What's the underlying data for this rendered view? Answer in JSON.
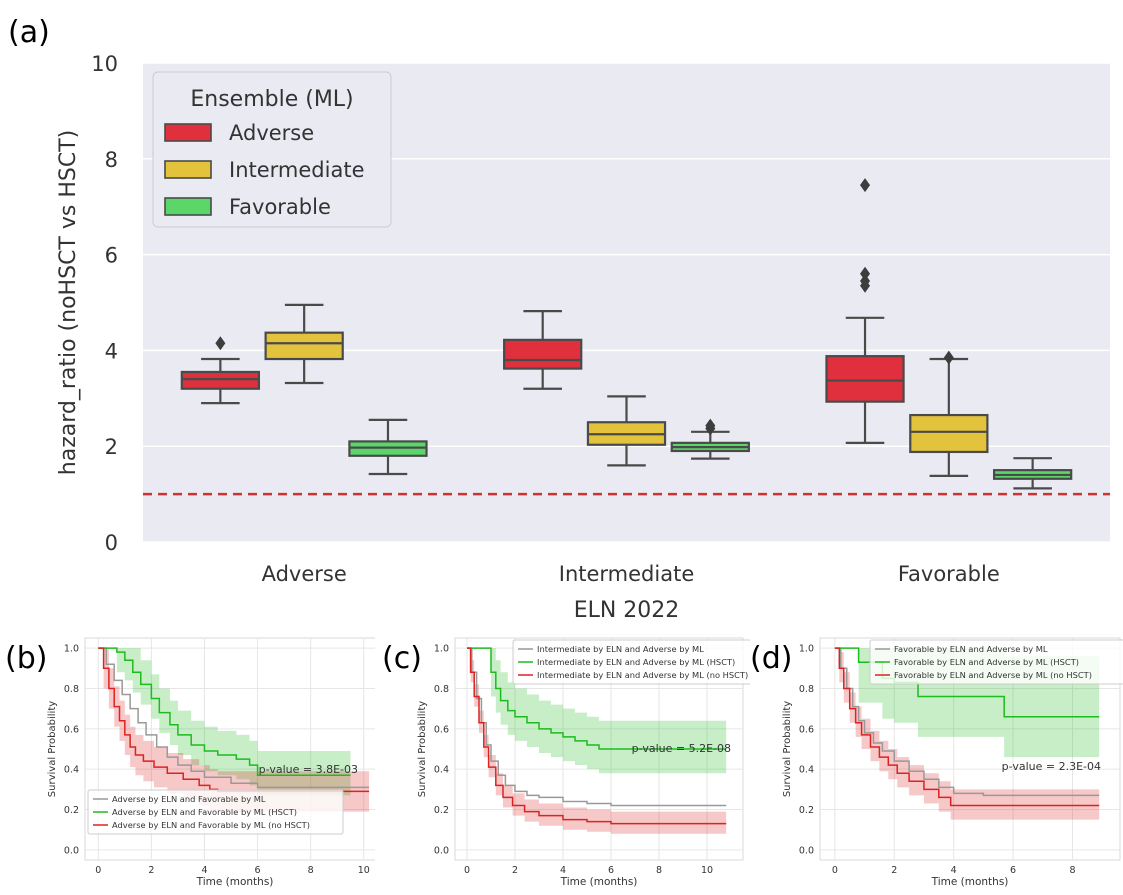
{
  "panel_labels": [
    "(a)",
    "(b)",
    "(c)",
    "(d)"
  ],
  "chart_data": [
    {
      "type": "box",
      "panel": "(a)",
      "xlabel": "ELN 2022",
      "ylabel": "hazard_ratio (noHSCT vs HSCT)",
      "ylim": [
        0,
        10
      ],
      "yticks": [
        "0",
        "2",
        "4",
        "6",
        "8",
        "10"
      ],
      "categories": [
        "Adverse",
        "Intermediate",
        "Favorable"
      ],
      "reference_line": {
        "y": 1,
        "style": "dashed",
        "color": "#cc3333"
      },
      "grid": true,
      "legend": {
        "title": "Ensemble (ML)",
        "placement": "top-left"
      },
      "series": [
        {
          "name": "Adverse",
          "color": "#e0303e",
          "boxes": [
            {
              "whislo": 2.9,
              "q1": 3.2,
              "med": 3.4,
              "q3": 3.55,
              "whishi": 3.82,
              "fliers": [
                4.15
              ]
            },
            {
              "whislo": 3.2,
              "q1": 3.62,
              "med": 3.8,
              "q3": 4.22,
              "whishi": 4.82,
              "fliers": []
            },
            {
              "whislo": 2.07,
              "q1": 2.93,
              "med": 3.37,
              "q3": 3.88,
              "whishi": 4.68,
              "fliers": [
                5.35,
                5.45,
                5.6,
                7.45
              ]
            }
          ]
        },
        {
          "name": "Intermediate",
          "color": "#e3c23c",
          "boxes": [
            {
              "whislo": 3.32,
              "q1": 3.82,
              "med": 4.15,
              "q3": 4.37,
              "whishi": 4.95,
              "fliers": []
            },
            {
              "whislo": 1.6,
              "q1": 2.03,
              "med": 2.25,
              "q3": 2.5,
              "whishi": 3.04,
              "fliers": []
            },
            {
              "whislo": 1.38,
              "q1": 1.88,
              "med": 2.3,
              "q3": 2.65,
              "whishi": 3.82,
              "fliers": [
                3.85
              ]
            }
          ]
        },
        {
          "name": "Favorable",
          "color": "#5ad768",
          "boxes": [
            {
              "whislo": 1.42,
              "q1": 1.8,
              "med": 1.97,
              "q3": 2.1,
              "whishi": 2.55,
              "fliers": []
            },
            {
              "whislo": 1.74,
              "q1": 1.9,
              "med": 1.98,
              "q3": 2.07,
              "whishi": 2.3,
              "fliers": [
                2.37,
                2.43
              ]
            },
            {
              "whislo": 1.12,
              "q1": 1.32,
              "med": 1.4,
              "q3": 1.5,
              "whishi": 1.75,
              "fliers": []
            }
          ]
        }
      ]
    },
    {
      "type": "line",
      "panel": "(b)",
      "xlabel": "Time (months)",
      "ylabel": "Survival Probability",
      "xlim": [
        -0.5,
        10.8
      ],
      "ylim": [
        -0.05,
        1.05
      ],
      "xticks": [
        0,
        2,
        4,
        6,
        8,
        10
      ],
      "yticks": [
        "0.0",
        "0.2",
        "0.4",
        "0.6",
        "0.8",
        "1.0"
      ],
      "annotation": "p-value = 3.8E-03",
      "legend_placement": "lower-left",
      "series": [
        {
          "name": "Adverse by ELN and Favorable by ML",
          "color": "#999999",
          "points": [
            [
              0,
              1
            ],
            [
              0.3,
              0.92
            ],
            [
              0.6,
              0.84
            ],
            [
              0.9,
              0.77
            ],
            [
              1.2,
              0.7
            ],
            [
              1.5,
              0.63
            ],
            [
              1.8,
              0.57
            ],
            [
              2.2,
              0.51
            ],
            [
              2.6,
              0.46
            ],
            [
              3.0,
              0.42
            ],
            [
              3.5,
              0.39
            ],
            [
              4.0,
              0.36
            ],
            [
              5.0,
              0.33
            ],
            [
              6.0,
              0.31
            ],
            [
              10.2,
              0.31
            ]
          ]
        },
        {
          "name": "Adverse by ELN and Favorable by ML (HSCT)",
          "color": "#1ebb1e",
          "band": [
            0.12,
            0.1
          ],
          "points": [
            [
              0,
              1
            ],
            [
              0.7,
              0.98
            ],
            [
              1.0,
              0.94
            ],
            [
              1.3,
              0.88
            ],
            [
              1.6,
              0.82
            ],
            [
              2.0,
              0.75
            ],
            [
              2.3,
              0.68
            ],
            [
              2.7,
              0.62
            ],
            [
              3.0,
              0.57
            ],
            [
              3.5,
              0.52
            ],
            [
              4.0,
              0.49
            ],
            [
              4.5,
              0.47
            ],
            [
              5.2,
              0.45
            ],
            [
              5.7,
              0.42
            ],
            [
              6.0,
              0.37
            ],
            [
              9.5,
              0.37
            ]
          ]
        },
        {
          "name": "Adverse by ELN and Favorable by ML (no HSCT)",
          "color": "#dd2222",
          "band": [
            0.1,
            0.1
          ],
          "points": [
            [
              0,
              1
            ],
            [
              0.2,
              0.9
            ],
            [
              0.4,
              0.8
            ],
            [
              0.6,
              0.71
            ],
            [
              0.8,
              0.64
            ],
            [
              1.0,
              0.57
            ],
            [
              1.2,
              0.51
            ],
            [
              1.4,
              0.47
            ],
            [
              1.7,
              0.44
            ],
            [
              2.1,
              0.41
            ],
            [
              2.6,
              0.38
            ],
            [
              3.2,
              0.35
            ],
            [
              3.8,
              0.32
            ],
            [
              4.2,
              0.3
            ],
            [
              4.5,
              0.29
            ],
            [
              10.2,
              0.29
            ]
          ]
        }
      ]
    },
    {
      "type": "line",
      "panel": "(c)",
      "xlabel": "Time (months)",
      "ylabel": "Survival Probability",
      "xlim": [
        -0.5,
        11.5
      ],
      "ylim": [
        -0.05,
        1.05
      ],
      "xticks": [
        0,
        2,
        4,
        6,
        8,
        10
      ],
      "yticks": [
        "0.0",
        "0.2",
        "0.4",
        "0.6",
        "0.8",
        "1.0"
      ],
      "annotation": "p-value = 5.2E-08",
      "legend_placement": "top-right",
      "series": [
        {
          "name": "Intermediate by ELN and Adverse by ML",
          "color": "#999999",
          "points": [
            [
              0,
              1
            ],
            [
              0.2,
              0.88
            ],
            [
              0.4,
              0.75
            ],
            [
              0.6,
              0.63
            ],
            [
              0.8,
              0.52
            ],
            [
              1.0,
              0.44
            ],
            [
              1.3,
              0.37
            ],
            [
              1.6,
              0.32
            ],
            [
              2.0,
              0.29
            ],
            [
              2.5,
              0.27
            ],
            [
              3.0,
              0.26
            ],
            [
              4.0,
              0.24
            ],
            [
              5.0,
              0.23
            ],
            [
              6.0,
              0.22
            ],
            [
              10.8,
              0.22
            ]
          ]
        },
        {
          "name": "Intermediate by ELN and Adverse by ML (HSCT)",
          "color": "#1ebb1e",
          "band": [
            0.14,
            0.12
          ],
          "points": [
            [
              0,
              1
            ],
            [
              0.8,
              1
            ],
            [
              1.0,
              0.88
            ],
            [
              1.2,
              0.8
            ],
            [
              1.4,
              0.74
            ],
            [
              1.7,
              0.69
            ],
            [
              2.0,
              0.66
            ],
            [
              2.5,
              0.63
            ],
            [
              3.0,
              0.6
            ],
            [
              3.5,
              0.58
            ],
            [
              4.0,
              0.56
            ],
            [
              4.5,
              0.54
            ],
            [
              5.0,
              0.52
            ],
            [
              5.5,
              0.5
            ],
            [
              10.8,
              0.5
            ]
          ]
        },
        {
          "name": "Intermediate by ELN and Adverse by ML (no HSCT)",
          "color": "#dd2222",
          "band": [
            0.06,
            0.05
          ],
          "points": [
            [
              0,
              1
            ],
            [
              0.15,
              0.88
            ],
            [
              0.3,
              0.76
            ],
            [
              0.5,
              0.63
            ],
            [
              0.7,
              0.51
            ],
            [
              0.9,
              0.41
            ],
            [
              1.2,
              0.32
            ],
            [
              1.5,
              0.26
            ],
            [
              1.9,
              0.22
            ],
            [
              2.4,
              0.19
            ],
            [
              3.0,
              0.17
            ],
            [
              4.0,
              0.15
            ],
            [
              5.0,
              0.14
            ],
            [
              6.0,
              0.13
            ],
            [
              10.8,
              0.13
            ]
          ]
        }
      ]
    },
    {
      "type": "line",
      "panel": "(d)",
      "xlabel": "Time (months)",
      "ylabel": "Survival Probability",
      "xlim": [
        -0.5,
        9.6
      ],
      "ylim": [
        -0.05,
        1.05
      ],
      "xticks": [
        0,
        2,
        4,
        6,
        8
      ],
      "yticks": [
        "0.0",
        "0.2",
        "0.4",
        "0.6",
        "0.8",
        "1.0"
      ],
      "annotation": "p-value = 2.3E-04",
      "legend_placement": "top-right",
      "series": [
        {
          "name": "Favorable by ELN and Adverse by ML",
          "color": "#999999",
          "points": [
            [
              0,
              1
            ],
            [
              0.2,
              0.9
            ],
            [
              0.4,
              0.8
            ],
            [
              0.6,
              0.71
            ],
            [
              0.8,
              0.64
            ],
            [
              1.0,
              0.58
            ],
            [
              1.3,
              0.53
            ],
            [
              1.6,
              0.49
            ],
            [
              2.0,
              0.44
            ],
            [
              2.5,
              0.39
            ],
            [
              3.0,
              0.35
            ],
            [
              3.5,
              0.31
            ],
            [
              4.0,
              0.28
            ],
            [
              5.0,
              0.27
            ],
            [
              8.9,
              0.27
            ]
          ]
        },
        {
          "name": "Favorable by ELN and Adverse by ML (HSCT)",
          "color": "#1ebb1e",
          "band": [
            0.3,
            0.2
          ],
          "points": [
            [
              0,
              1
            ],
            [
              0.8,
              1
            ],
            [
              0.8,
              0.93
            ],
            [
              1.6,
              0.93
            ],
            [
              1.6,
              0.85
            ],
            [
              2.0,
              0.83
            ],
            [
              2.8,
              0.83
            ],
            [
              2.8,
              0.76
            ],
            [
              5.7,
              0.76
            ],
            [
              5.7,
              0.66
            ],
            [
              8.9,
              0.66
            ]
          ]
        },
        {
          "name": "Favorable by ELN and Adverse by ML (no HSCT)",
          "color": "#dd2222",
          "band": [
            0.08,
            0.07
          ],
          "points": [
            [
              0,
              1
            ],
            [
              0.15,
              0.9
            ],
            [
              0.3,
              0.8
            ],
            [
              0.5,
              0.7
            ],
            [
              0.7,
              0.63
            ],
            [
              0.9,
              0.57
            ],
            [
              1.2,
              0.51
            ],
            [
              1.5,
              0.46
            ],
            [
              1.8,
              0.42
            ],
            [
              2.1,
              0.38
            ],
            [
              2.5,
              0.34
            ],
            [
              3.0,
              0.3
            ],
            [
              3.5,
              0.26
            ],
            [
              3.9,
              0.22
            ],
            [
              8.9,
              0.22
            ]
          ]
        }
      ]
    }
  ]
}
